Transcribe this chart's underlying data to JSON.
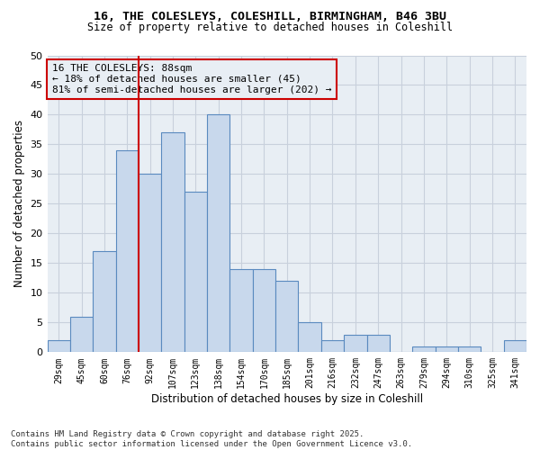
{
  "title1": "16, THE COLESLEYS, COLESHILL, BIRMINGHAM, B46 3BU",
  "title2": "Size of property relative to detached houses in Coleshill",
  "xlabel": "Distribution of detached houses by size in Coleshill",
  "ylabel": "Number of detached properties",
  "bin_labels": [
    "29sqm",
    "45sqm",
    "60sqm",
    "76sqm",
    "92sqm",
    "107sqm",
    "123sqm",
    "138sqm",
    "154sqm",
    "170sqm",
    "185sqm",
    "201sqm",
    "216sqm",
    "232sqm",
    "247sqm",
    "263sqm",
    "279sqm",
    "294sqm",
    "310sqm",
    "325sqm",
    "341sqm"
  ],
  "bar_heights": [
    2,
    6,
    17,
    34,
    30,
    37,
    27,
    40,
    14,
    14,
    12,
    5,
    2,
    3,
    3,
    0,
    1,
    1,
    1,
    0,
    2
  ],
  "bar_color": "#c8d8ec",
  "bar_edge_color": "#5a8abf",
  "vline_color": "#cc0000",
  "annotation_text": "16 THE COLESLEYS: 88sqm\n← 18% of detached houses are smaller (45)\n81% of semi-detached houses are larger (202) →",
  "annotation_box_color": "#cc0000",
  "ylim": [
    0,
    50
  ],
  "yticks": [
    0,
    5,
    10,
    15,
    20,
    25,
    30,
    35,
    40,
    45,
    50
  ],
  "grid_color": "#c8d0dc",
  "bg_color": "#e8eef4",
  "plot_bg_color": "#e8eef4",
  "footer": "Contains HM Land Registry data © Crown copyright and database right 2025.\nContains public sector information licensed under the Open Government Licence v3.0."
}
